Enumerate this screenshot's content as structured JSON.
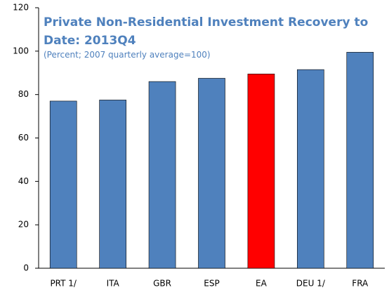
{
  "chart_data": {
    "type": "bar",
    "title": "Private Non-Residential Investment Recovery to Date: 2013Q4",
    "subtitle": "(Percent; 2007 quarterly average=100)",
    "categories": [
      "PRT 1/",
      "ITA",
      "GBR",
      "ESP",
      "EA",
      "DEU 1/",
      "FRA"
    ],
    "values": [
      77,
      77.5,
      86,
      87.5,
      89.5,
      91.5,
      99.5
    ],
    "colors": [
      "#4f81bd",
      "#4f81bd",
      "#4f81bd",
      "#4f81bd",
      "#ff0000",
      "#4f81bd",
      "#4f81bd"
    ],
    "ylim": [
      0,
      120
    ],
    "yticks": [
      0,
      20,
      40,
      60,
      80,
      100,
      120
    ],
    "grid": false
  }
}
